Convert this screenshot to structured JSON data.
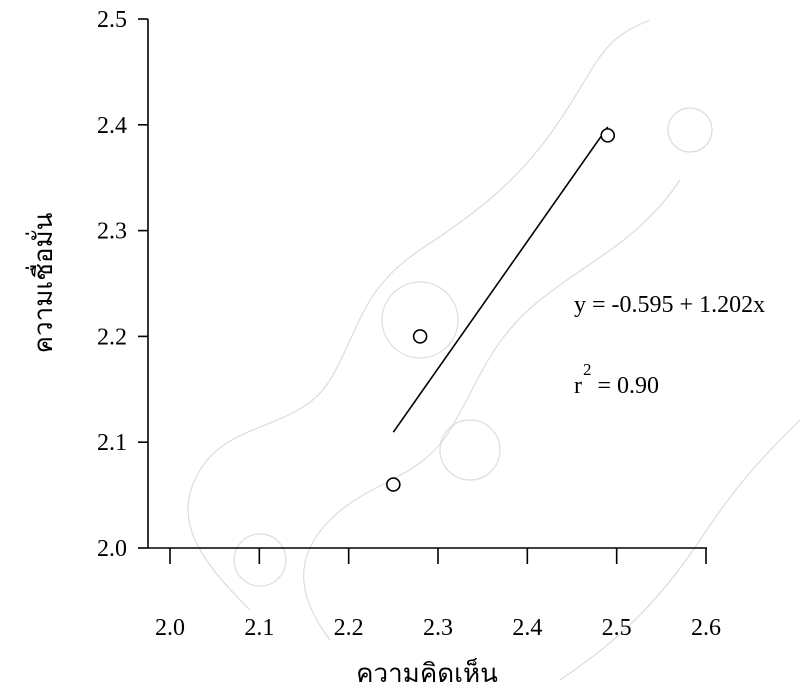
{
  "chart_data": {
    "type": "scatter",
    "xlabel": "ความคิดเห็น",
    "ylabel": "ความเชื่อมั่น",
    "xlim": [
      2.0,
      2.6
    ],
    "ylim": [
      2.0,
      2.5
    ],
    "x_ticks": [
      "2.0",
      "2.1",
      "2.2",
      "2.3",
      "2.4",
      "2.5",
      "2.6"
    ],
    "y_ticks": [
      "2.0",
      "2.1",
      "2.2",
      "2.3",
      "2.4",
      "2.5"
    ],
    "points": [
      {
        "x": 2.25,
        "y": 2.06
      },
      {
        "x": 2.28,
        "y": 2.2
      },
      {
        "x": 2.49,
        "y": 2.39
      }
    ],
    "fit_line": {
      "x_start": 2.25,
      "x_end": 2.49,
      "intercept": -0.595,
      "slope": 1.202
    },
    "equation": "y = -0.595 + 1.202x",
    "r2_prefix": "r",
    "r2_superscript": "2",
    "r2_value": " = 0.90",
    "grid": false,
    "watermark": "decorative"
  }
}
